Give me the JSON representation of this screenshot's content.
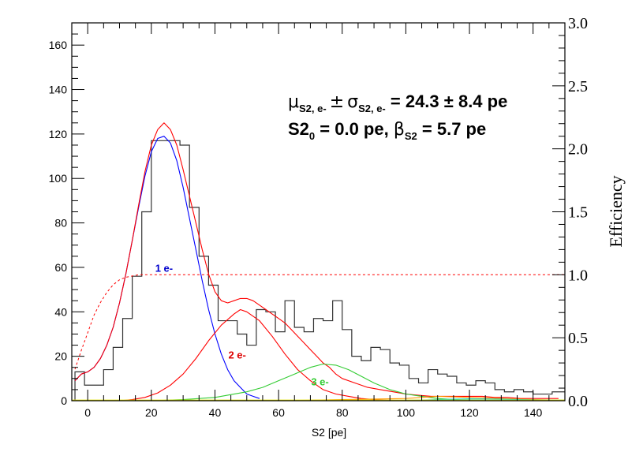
{
  "chart_data": {
    "type": "line",
    "xlabel": "S2 [pe]",
    "ylabel_right": "Efficiency",
    "xlim": [
      -5,
      150
    ],
    "ylim": [
      0,
      170
    ],
    "ylim_right": [
      0,
      3.0
    ],
    "x_ticks": [
      0,
      20,
      40,
      60,
      80,
      100,
      120,
      140
    ],
    "y_ticks": [
      0,
      20,
      40,
      60,
      80,
      100,
      120,
      140,
      160
    ],
    "right_ticks": [
      "0.0",
      "0.5",
      "1.0",
      "1.5",
      "2.0",
      "2.5",
      "3.0"
    ],
    "annotations": [
      {
        "text": "1 e-",
        "x": 24,
        "y": 58,
        "color": "#0000cc"
      },
      {
        "text": "2 e-",
        "x": 47,
        "y": 19,
        "color": "#dd0000"
      },
      {
        "text": "3 e-",
        "x": 73,
        "y": 7,
        "color": "#33cc33"
      }
    ],
    "stats": {
      "line1_mu": "μ",
      "line1_mu_sub": "S2, e-",
      "line1_pm": "±",
      "line1_sigma": "σ",
      "line1_sigma_sub": "S2, e-",
      "line1_value": " = 24.3 ± 8.4 pe",
      "line2_main": "S2",
      "line2_main_sub": "0",
      "line2_value": " = 0.0 pe,  ",
      "line2_beta": "β",
      "line2_beta_sub": "S2",
      "line2_end": " = 5.7 pe"
    },
    "histogram": {
      "bin_width": 3,
      "bin_edges_start": -4,
      "values": [
        13,
        7,
        7,
        14,
        24,
        37,
        56,
        85,
        117,
        117,
        117,
        115,
        87,
        65,
        52,
        36,
        36,
        30,
        25,
        41,
        40,
        31,
        45,
        33,
        31,
        37,
        36,
        45,
        32,
        20,
        18,
        24,
        23,
        17,
        16,
        10,
        8,
        14,
        12,
        11,
        8,
        7,
        9,
        8,
        5,
        4,
        5,
        4,
        3,
        3,
        4,
        4,
        2,
        3,
        3,
        2,
        2,
        1,
        3,
        2,
        2,
        3,
        2,
        1,
        1,
        2,
        1,
        1,
        2,
        1,
        1,
        1
      ]
    },
    "series": [
      {
        "color": "#0000ff",
        "x": [
          -4,
          -2,
          0,
          2,
          4,
          6,
          8,
          10,
          12,
          14,
          16,
          18,
          20,
          22,
          24,
          26,
          28,
          30,
          32,
          34,
          36,
          38,
          40,
          42,
          44,
          46,
          48,
          50,
          52,
          54
        ],
        "y": [
          9,
          12,
          13,
          15,
          19,
          25,
          33,
          44,
          57,
          72,
          87,
          101,
          112,
          118,
          119,
          116,
          108,
          96,
          82,
          68,
          54,
          41,
          30,
          21,
          14,
          9,
          6,
          3,
          2,
          1
        ]
      },
      {
        "color": "#ff0000",
        "x": [
          -4,
          -2,
          0,
          2,
          4,
          6,
          8,
          10,
          12,
          14,
          16,
          18,
          20,
          22,
          24,
          26,
          28,
          30,
          32,
          34,
          36,
          38,
          40,
          42,
          44,
          46,
          48,
          50,
          52,
          54,
          56,
          58,
          60,
          62,
          64,
          66,
          68,
          70,
          72,
          74,
          76,
          78,
          80,
          84,
          88,
          92,
          96,
          100,
          104,
          108,
          112,
          116,
          120,
          124,
          128,
          132,
          136,
          140,
          144,
          148
        ],
        "y": [
          9,
          12,
          13,
          15,
          19,
          25,
          33,
          44,
          57,
          72,
          88,
          103,
          115,
          122,
          125,
          122,
          115,
          104,
          92,
          80,
          68,
          57,
          49,
          45,
          44,
          45,
          46,
          46,
          45,
          43,
          41,
          39,
          37,
          35,
          32,
          29,
          26,
          23,
          20,
          17,
          15,
          12,
          10,
          8,
          6,
          5,
          4,
          3,
          2.5,
          2,
          2,
          2,
          2,
          2,
          1.5,
          1.5,
          1,
          1,
          1,
          1
        ]
      },
      {
        "color": "#ff0000",
        "x": [
          10,
          14,
          18,
          22,
          26,
          30,
          34,
          38,
          42,
          46,
          48,
          50,
          54,
          58,
          62,
          66,
          70,
          74,
          78,
          82,
          86,
          90,
          94,
          98,
          102
        ],
        "y": [
          0,
          0.5,
          1.5,
          3.5,
          7,
          12,
          19,
          27,
          34,
          39,
          41,
          40,
          36,
          29,
          21,
          14,
          9,
          5,
          3,
          2,
          1,
          0.5,
          0.3,
          0.2,
          0.1
        ]
      },
      {
        "color": "#33cc33",
        "x": [
          20,
          30,
          40,
          50,
          55,
          60,
          65,
          70,
          74,
          78,
          82,
          86,
          90,
          95,
          100,
          105,
          110,
          115,
          120,
          130
        ],
        "y": [
          0,
          0.5,
          1.5,
          4,
          6,
          9,
          12,
          15,
          16.5,
          16,
          14,
          11,
          8,
          5,
          3,
          2,
          1,
          0.5,
          0.2,
          0
        ]
      },
      {
        "color": "#ff9900",
        "x": [
          60,
          80,
          100,
          110,
          120,
          130,
          140,
          150
        ],
        "y": [
          0,
          0.5,
          1,
          2,
          1.5,
          1,
          0.5,
          0.2
        ]
      },
      {
        "color": "#00cccc",
        "x": [
          90,
          105,
          115,
          120,
          130,
          140,
          150
        ],
        "y": [
          0,
          0.3,
          0.7,
          0.8,
          0.7,
          0.4,
          0.2
        ]
      },
      {
        "color": "#dddd00",
        "x": [
          -5,
          150
        ],
        "y": [
          0.3,
          0.3
        ]
      }
    ],
    "efficiency": {
      "color": "#ff0000",
      "style": "dashed",
      "x": [
        -4,
        -2,
        0,
        2,
        4,
        6,
        8,
        10,
        12,
        14,
        16,
        18,
        20,
        22,
        150
      ],
      "y": [
        0.25,
        0.4,
        0.54,
        0.68,
        0.78,
        0.86,
        0.92,
        0.96,
        0.98,
        0.99,
        1.0,
        1.0,
        1.0,
        1.0,
        1.0
      ]
    }
  }
}
